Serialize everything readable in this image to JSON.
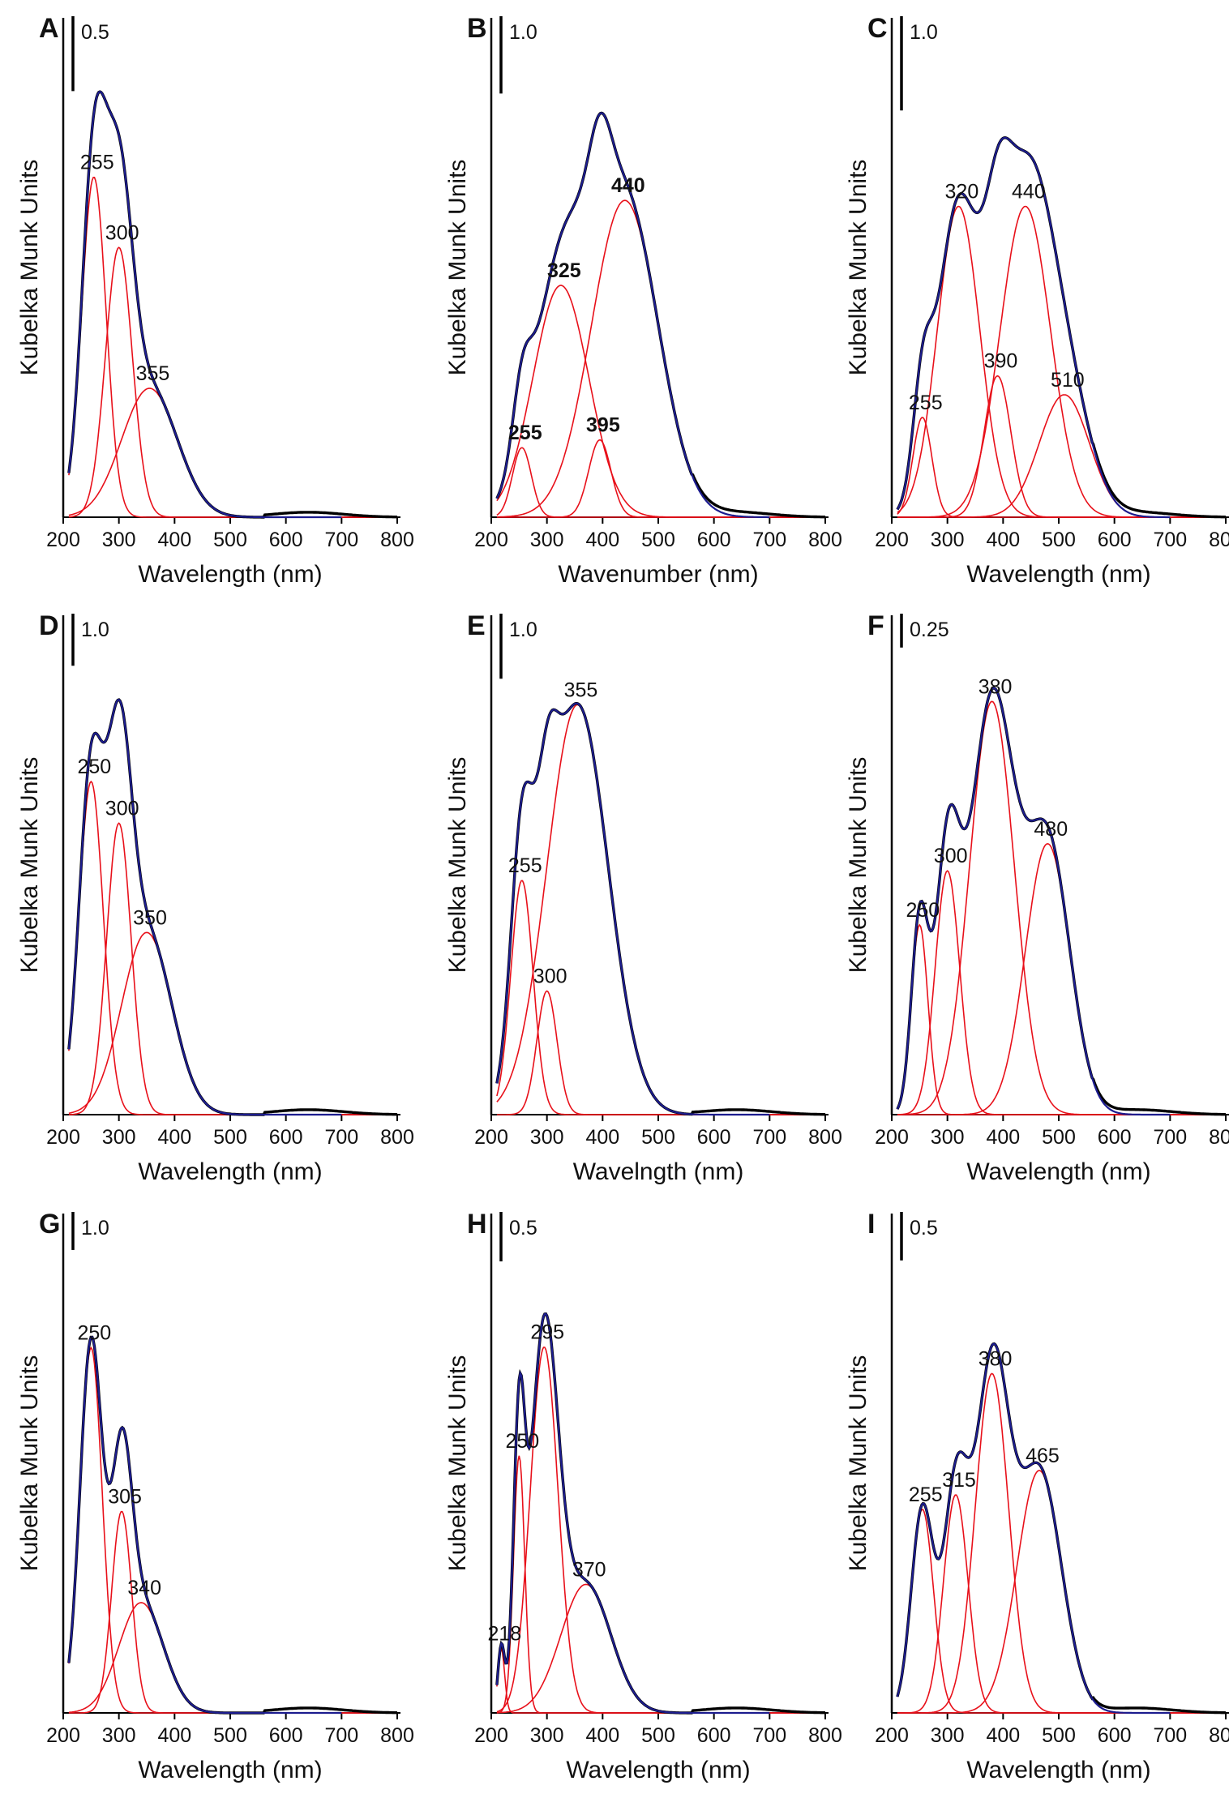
{
  "colors": {
    "components": "#e8101a",
    "fit": "#1c1c8f",
    "measured": "#000000",
    "axis": "#000000"
  },
  "chart_data": [
    {
      "panel": "A",
      "type": "line",
      "xlabel": "Wavelength (nm)",
      "ylabel": "Kubelka Munk Units",
      "xlim": [
        200,
        800
      ],
      "ylim": [
        0,
        3.3
      ],
      "xticks": [
        "200",
        "300",
        "400",
        "500",
        "600",
        "700",
        "800"
      ],
      "scale_bar": "0.5",
      "scale_bar_value": 0.5,
      "label_bold": false,
      "components": [
        {
          "label": "255",
          "center": 255,
          "height": 2.27,
          "sigma": 22
        },
        {
          "label": "300",
          "center": 300,
          "height": 1.8,
          "sigma": 24
        },
        {
          "label": "355",
          "center": 355,
          "height": 0.86,
          "sigma": 50
        }
      ]
    },
    {
      "panel": "B",
      "type": "line",
      "xlabel": "Wavenumber (nm)",
      "ylabel": "Kubelka Munk Units",
      "xlim": [
        200,
        800
      ],
      "ylim": [
        0,
        6.4
      ],
      "xticks": [
        "200",
        "300",
        "400",
        "500",
        "600",
        "700",
        "800"
      ],
      "scale_bar": "1.0",
      "scale_bar_value": 1.0,
      "label_bold": true,
      "components": [
        {
          "label": "255",
          "center": 255,
          "height": 0.9,
          "sigma": 17
        },
        {
          "label": "325",
          "center": 325,
          "height": 3.0,
          "sigma": 50
        },
        {
          "label": "395",
          "center": 395,
          "height": 1.0,
          "sigma": 20
        },
        {
          "label": "440",
          "center": 440,
          "height": 4.1,
          "sigma": 60
        }
      ]
    },
    {
      "panel": "C",
      "type": "line",
      "xlabel": "Wavelength (nm)",
      "ylabel": "Kubelka Munk Units",
      "xlim": [
        200,
        800
      ],
      "ylim": [
        0,
        5.25
      ],
      "xticks": [
        "200",
        "300",
        "400",
        "500",
        "600",
        "700",
        "800"
      ],
      "scale_bar": "1.0",
      "scale_bar_value": 1.0,
      "label_bold": false,
      "components": [
        {
          "label": "255",
          "center": 255,
          "height": 1.06,
          "sigma": 17
        },
        {
          "label": "320",
          "center": 320,
          "height": 3.3,
          "sigma": 38
        },
        {
          "label": "390",
          "center": 390,
          "height": 1.5,
          "sigma": 24
        },
        {
          "label": "440",
          "center": 440,
          "height": 3.3,
          "sigma": 45
        },
        {
          "label": "510",
          "center": 510,
          "height": 1.3,
          "sigma": 45
        }
      ]
    },
    {
      "panel": "D",
      "type": "line",
      "xlabel": "Wavelength (nm)",
      "ylabel": "Kubelka Munk Units",
      "xlim": [
        200,
        800
      ],
      "ylim": [
        0,
        9.5
      ],
      "xticks": [
        "200",
        "300",
        "400",
        "500",
        "600",
        "700",
        "800"
      ],
      "scale_bar": "1.0",
      "scale_bar_value": 1.0,
      "label_bold": false,
      "components": [
        {
          "label": "250",
          "center": 250,
          "height": 6.4,
          "sigma": 22
        },
        {
          "label": "300",
          "center": 300,
          "height": 5.6,
          "sigma": 22
        },
        {
          "label": "350",
          "center": 350,
          "height": 3.5,
          "sigma": 45
        }
      ]
    },
    {
      "panel": "E",
      "type": "line",
      "xlabel": "Wavelngth (nm)",
      "ylabel": "Kubelka Munk Units",
      "xlim": [
        200,
        800
      ],
      "ylim": [
        0,
        7.6
      ],
      "xticks": [
        "200",
        "300",
        "400",
        "500",
        "600",
        "700",
        "800"
      ],
      "scale_bar": "1.0",
      "scale_bar_value": 1.0,
      "label_bold": false,
      "components": [
        {
          "label": "255",
          "center": 255,
          "height": 3.6,
          "sigma": 20
        },
        {
          "label": "300",
          "center": 300,
          "height": 1.9,
          "sigma": 18
        },
        {
          "label": "355",
          "center": 355,
          "height": 6.3,
          "sigma": 55
        }
      ]
    },
    {
      "panel": "F",
      "type": "line",
      "xlabel": "Wavelength (nm)",
      "ylabel": "Kubelka Munk Units",
      "xlim": [
        200,
        800
      ],
      "ylim": [
        0,
        3.65
      ],
      "xticks": [
        "200",
        "300",
        "400",
        "500",
        "600",
        "700",
        "800"
      ],
      "scale_bar": "0.25",
      "scale_bar_value": 0.25,
      "label_bold": false,
      "components": [
        {
          "label": "250",
          "center": 250,
          "height": 1.4,
          "sigma": 15
        },
        {
          "label": "300",
          "center": 300,
          "height": 1.8,
          "sigma": 22
        },
        {
          "label": "380",
          "center": 380,
          "height": 3.05,
          "sigma": 40
        },
        {
          "label": "480",
          "center": 480,
          "height": 2.0,
          "sigma": 40
        }
      ]
    },
    {
      "panel": "G",
      "type": "line",
      "xlabel": "Wavelength (nm)",
      "ylabel": "Kubelka Munk Units",
      "xlim": [
        200,
        800
      ],
      "ylim": [
        0,
        13
      ],
      "xticks": [
        "200",
        "300",
        "400",
        "500",
        "600",
        "700",
        "800"
      ],
      "scale_bar": "1.0",
      "scale_bar_value": 1.0,
      "label_bold": false,
      "components": [
        {
          "label": "250",
          "center": 250,
          "height": 9.6,
          "sigma": 20
        },
        {
          "label": "305",
          "center": 305,
          "height": 5.3,
          "sigma": 18
        },
        {
          "label": "340",
          "center": 340,
          "height": 2.9,
          "sigma": 40
        }
      ]
    },
    {
      "panel": "H",
      "type": "line",
      "xlabel": "Wavelength (nm)",
      "ylabel": "Kubelka Munk Units",
      "xlim": [
        200,
        800
      ],
      "ylim": [
        0,
        5.0
      ],
      "xticks": [
        "200",
        "300",
        "400",
        "500",
        "600",
        "700",
        "800"
      ],
      "scale_bar": "0.5",
      "scale_bar_value": 0.5,
      "label_bold": false,
      "components": [
        {
          "label": "218",
          "center": 218,
          "height": 0.65,
          "sigma": 6
        },
        {
          "label": "250",
          "center": 250,
          "height": 2.6,
          "sigma": 10
        },
        {
          "label": "295",
          "center": 295,
          "height": 3.7,
          "sigma": 25
        },
        {
          "label": "370",
          "center": 370,
          "height": 1.3,
          "sigma": 45
        }
      ]
    },
    {
      "panel": "I",
      "type": "line",
      "xlabel": "Wavelength (nm)",
      "ylabel": "Kubelka Munk Units",
      "xlim": [
        200,
        800
      ],
      "ylim": [
        0,
        5.1
      ],
      "xticks": [
        "200",
        "300",
        "400",
        "500",
        "600",
        "700",
        "800"
      ],
      "scale_bar": "0.5",
      "scale_bar_value": 0.5,
      "label_bold": false,
      "components": [
        {
          "label": "255",
          "center": 255,
          "height": 2.1,
          "sigma": 20
        },
        {
          "label": "315",
          "center": 315,
          "height": 2.25,
          "sigma": 22
        },
        {
          "label": "380",
          "center": 380,
          "height": 3.5,
          "sigma": 30
        },
        {
          "label": "465",
          "center": 465,
          "height": 2.5,
          "sigma": 40
        }
      ]
    }
  ]
}
